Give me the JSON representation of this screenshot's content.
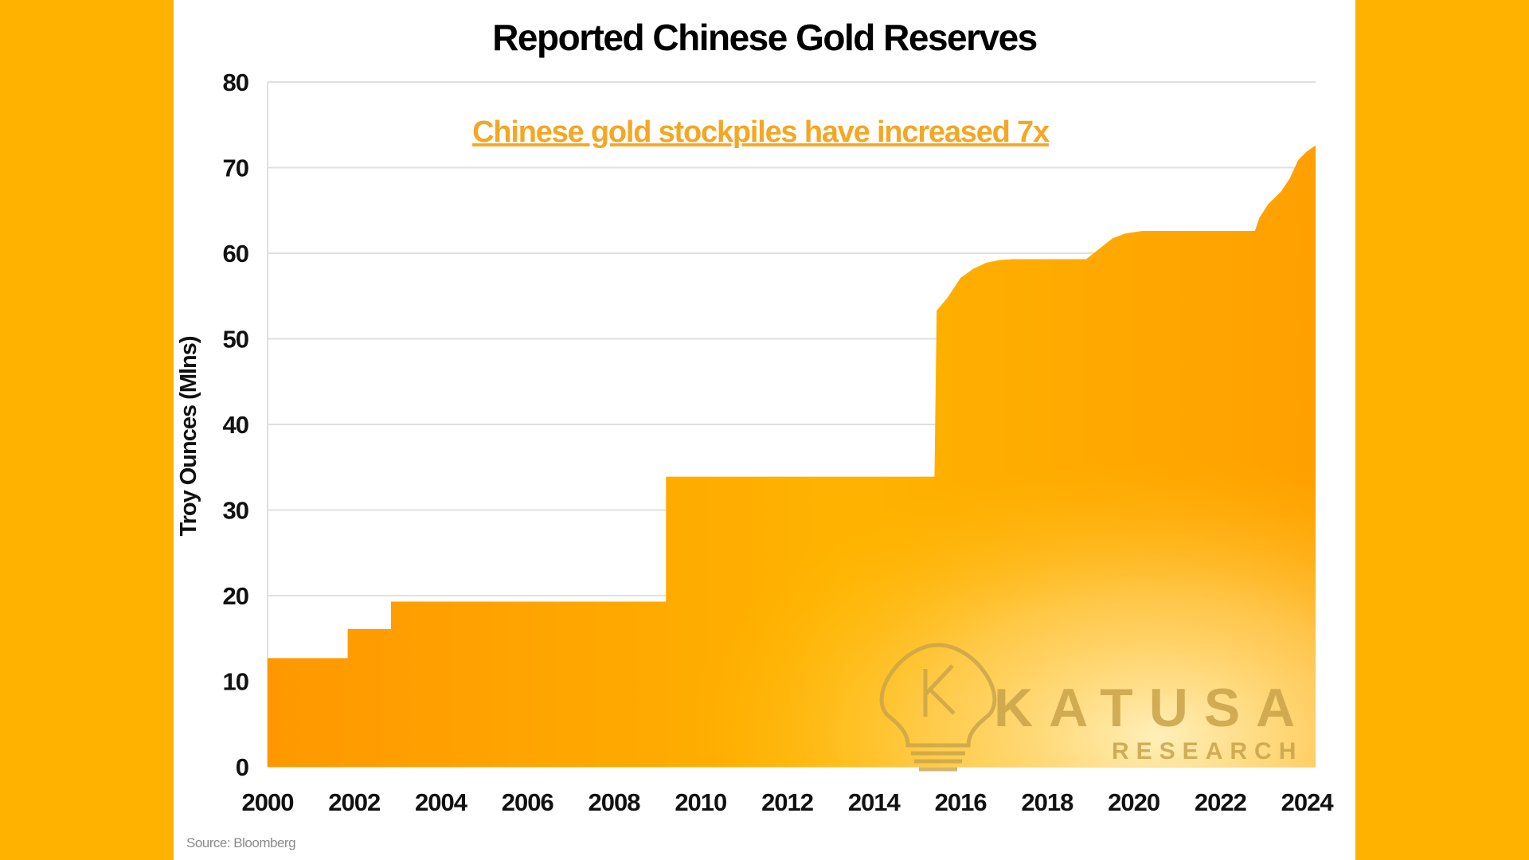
{
  "colors": {
    "background": "#FFB300",
    "panel": "#FFFFFF",
    "area_dark": "#FF9800",
    "area_mid": "#FFB300",
    "area_light": "#FFD54F",
    "annotation": "#F5A623",
    "logo": "#C9A34A",
    "grid": "#E0E0E0"
  },
  "watermark": {
    "word": "KATUSA",
    "sub": "RESEARCH",
    "icon": "lightbulb-k-icon"
  },
  "source": "Source: Bloomberg",
  "chart_data": {
    "type": "area",
    "title": "Reported Chinese Gold Reserves",
    "ylabel": "Troy Ounces (Mlns)",
    "xlabel": "",
    "xlim": [
      2000,
      2024.2
    ],
    "ylim": [
      0,
      80
    ],
    "grid": true,
    "yticks": [
      0,
      10,
      20,
      30,
      40,
      50,
      60,
      70,
      80
    ],
    "xticks": [
      2000,
      2002,
      2004,
      2006,
      2008,
      2010,
      2012,
      2014,
      2016,
      2018,
      2020,
      2022,
      2024
    ],
    "annotation": "Chinese gold stockpiles have increased 7x",
    "series": [
      {
        "x": [
          2000,
          2001.85,
          2001.85,
          2002.85,
          2002.85,
          2009.2,
          2009.2,
          2015.4,
          2015.45,
          2015.7,
          2016.0,
          2016.3,
          2016.6,
          2016.9,
          2017.2,
          2018.9,
          2019.2,
          2019.5,
          2019.8,
          2020.2,
          2022.8,
          2022.9,
          2023.1,
          2023.4,
          2023.6,
          2023.8,
          2024.0,
          2024.2
        ],
        "y": [
          12.7,
          12.7,
          16.1,
          16.1,
          19.3,
          19.3,
          33.9,
          33.9,
          53.3,
          54.8,
          57.1,
          58.2,
          58.9,
          59.2,
          59.3,
          59.3,
          60.5,
          61.7,
          62.3,
          62.6,
          62.6,
          64.1,
          65.7,
          67.2,
          68.7,
          70.9,
          71.9,
          72.6
        ]
      }
    ]
  }
}
